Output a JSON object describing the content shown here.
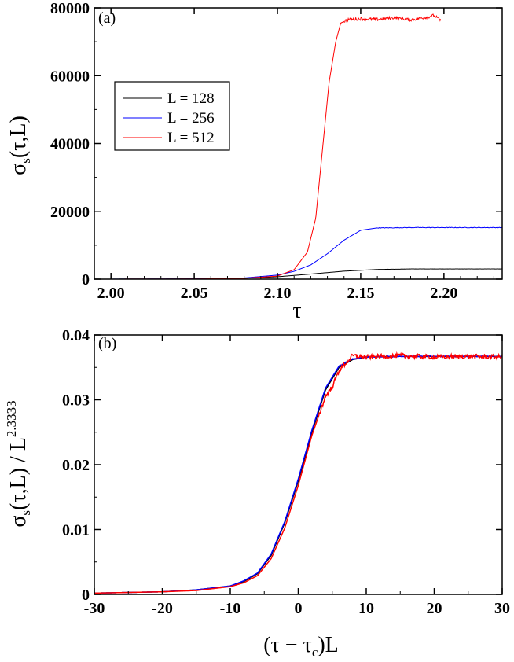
{
  "chart_data": [
    {
      "panel": "(a)",
      "type": "line",
      "xlabel": "τ",
      "ylabel_main": "σ",
      "ylabel_sub": "s",
      "ylabel_rest": "(τ,L)",
      "xlim": [
        1.99,
        2.235
      ],
      "ylim": [
        0,
        80000
      ],
      "x_ticks": [
        "2.00",
        "2.05",
        "2.10",
        "2.15",
        "2.20"
      ],
      "y_ticks": [
        "0",
        "20000",
        "40000",
        "60000",
        "80000"
      ],
      "legend_position": "upper-left",
      "series": [
        {
          "name": "L = 128",
          "color": "#000000",
          "points": [
            [
              1.99,
              0
            ],
            [
              2.05,
              60
            ],
            [
              2.08,
              250
            ],
            [
              2.1,
              700
            ],
            [
              2.12,
              1500
            ],
            [
              2.14,
              2350
            ],
            [
              2.16,
              2850
            ],
            [
              2.18,
              3000
            ],
            [
              2.235,
              3000
            ]
          ]
        },
        {
          "name": "L = 256",
          "color": "#0000ff",
          "points": [
            [
              1.99,
              0
            ],
            [
              2.05,
              80
            ],
            [
              2.08,
              350
            ],
            [
              2.1,
              1200
            ],
            [
              2.11,
              2300
            ],
            [
              2.12,
              4200
            ],
            [
              2.13,
              7500
            ],
            [
              2.14,
              11500
            ],
            [
              2.15,
              14400
            ],
            [
              2.16,
              15100
            ],
            [
              2.18,
              15200
            ],
            [
              2.235,
              15200
            ]
          ]
        },
        {
          "name": "L = 512",
          "color": "#ff0000",
          "points": [
            [
              1.99,
              0
            ],
            [
              2.05,
              50
            ],
            [
              2.08,
              250
            ],
            [
              2.1,
              900
            ],
            [
              2.11,
              2800
            ],
            [
              2.118,
              8000
            ],
            [
              2.123,
              18000
            ],
            [
              2.127,
              38000
            ],
            [
              2.131,
              58000
            ],
            [
              2.135,
              70000
            ],
            [
              2.138,
              75500
            ],
            [
              2.142,
              76500
            ],
            [
              2.15,
              76800
            ],
            [
              2.16,
              76600
            ],
            [
              2.17,
              77100
            ],
            [
              2.18,
              76500
            ],
            [
              2.19,
              77300
            ],
            [
              2.194,
              77800
            ],
            [
              2.198,
              76300
            ]
          ]
        }
      ]
    },
    {
      "panel": "(b)",
      "type": "line",
      "xlabel": "(τ − τ",
      "xlabel_sub": "c",
      "xlabel_rest": ")L",
      "ylabel_main": "σ",
      "ylabel_sub": "s",
      "ylabel_rest": "(τ,L) / L",
      "ylabel_sup": "2.3333",
      "xlim": [
        -30,
        30
      ],
      "ylim": [
        0,
        0.04
      ],
      "x_ticks": [
        "-30",
        "-20",
        "-10",
        "0",
        "10",
        "20",
        "30"
      ],
      "y_ticks": [
        "0",
        "0.01",
        "0.02",
        "0.03",
        "0.04"
      ],
      "series": [
        {
          "color": "#000000",
          "points": [
            [
              -30,
              0.0002
            ],
            [
              -20,
              0.0004
            ],
            [
              -15,
              0.0007
            ],
            [
              -10,
              0.0013
            ],
            [
              -8,
              0.002
            ],
            [
              -6,
              0.0032
            ],
            [
              -4,
              0.006
            ],
            [
              -2,
              0.011
            ],
            [
              0,
              0.0175
            ],
            [
              2,
              0.025
            ],
            [
              4,
              0.0315
            ],
            [
              6,
              0.035
            ],
            [
              8,
              0.0362
            ],
            [
              10,
              0.0366
            ],
            [
              15,
              0.0367
            ],
            [
              20,
              0.0367
            ],
            [
              30,
              0.0367
            ]
          ]
        },
        {
          "color": "#0000ff",
          "points": [
            [
              -30,
              0.0002
            ],
            [
              -20,
              0.0004
            ],
            [
              -15,
              0.0007
            ],
            [
              -10,
              0.0013
            ],
            [
              -8,
              0.0021
            ],
            [
              -6,
              0.0033
            ],
            [
              -4,
              0.0062
            ],
            [
              -2,
              0.0112
            ],
            [
              0,
              0.0178
            ],
            [
              2,
              0.0253
            ],
            [
              4,
              0.0318
            ],
            [
              6,
              0.0352
            ],
            [
              8,
              0.0363
            ],
            [
              10,
              0.0366
            ],
            [
              15,
              0.0367
            ],
            [
              20,
              0.0367
            ],
            [
              30,
              0.0367
            ]
          ]
        },
        {
          "color": "#ff0000",
          "points": [
            [
              -30,
              0.0002
            ],
            [
              -20,
              0.0004
            ],
            [
              -15,
              0.0006
            ],
            [
              -10,
              0.0012
            ],
            [
              -8,
              0.0018
            ],
            [
              -6,
              0.0029
            ],
            [
              -4,
              0.0055
            ],
            [
              -2,
              0.0102
            ],
            [
              0,
              0.0168
            ],
            [
              2,
              0.0245
            ],
            [
              4,
              0.0305
            ],
            [
              5,
              0.032
            ],
            [
              6,
              0.0345
            ],
            [
              8,
              0.0368
            ],
            [
              10,
              0.0366
            ],
            [
              15,
              0.0368
            ],
            [
              20,
              0.0366
            ],
            [
              25,
              0.0367
            ],
            [
              30,
              0.0366
            ]
          ]
        }
      ]
    }
  ]
}
